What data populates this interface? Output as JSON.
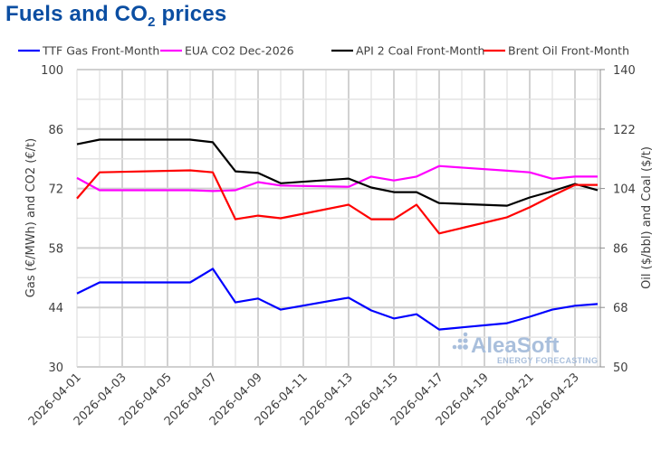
{
  "chart_data": {
    "type": "line",
    "title_main": "Fuels and CO",
    "title_sub": "2",
    "title_tail": " prices",
    "ylabel_left": "Gas (€/MWh) and CO2 (€/t)",
    "ylabel_right": "Oil ($/bbl) and Coal ($/t)",
    "ylim_left": [
      30,
      100
    ],
    "ylim_right": [
      50,
      140
    ],
    "yticks_left": [
      "100",
      "86",
      "72",
      "58",
      "44",
      "30"
    ],
    "yticks_right": [
      "140",
      "122",
      "104",
      "86",
      "68",
      "50"
    ],
    "ytick_values_left": [
      100,
      86,
      72,
      58,
      44,
      30
    ],
    "ytick_values_right": [
      140,
      122,
      104,
      86,
      68,
      50
    ],
    "x_start": "2026-04-01",
    "x_end": "2026-04-24",
    "xticks": [
      "2026-04-01",
      "2026-04-03",
      "2026-04-05",
      "2026-04-07",
      "2026-04-09",
      "2026-04-11",
      "2026-04-13",
      "2026-04-15",
      "2026-04-17",
      "2026-04-19",
      "2026-04-21",
      "2026-04-23"
    ],
    "grid": true,
    "legend_position": "top",
    "x": [
      "2026-04-01",
      "2026-04-02",
      "2026-04-06",
      "2026-04-07",
      "2026-04-08",
      "2026-04-09",
      "2026-04-10",
      "2026-04-13",
      "2026-04-14",
      "2026-04-15",
      "2026-04-16",
      "2026-04-17",
      "2026-04-20",
      "2026-04-21",
      "2026-04-22",
      "2026-04-23",
      "2026-04-24"
    ],
    "series": [
      {
        "name": "TTF Gas Front-Month",
        "axis": "left",
        "color": "#0000ff",
        "values": [
          47.3,
          49.9,
          49.9,
          53.1,
          45.2,
          46.1,
          43.5,
          46.3,
          43.3,
          41.4,
          42.4,
          38.8,
          40.3,
          41.8,
          43.5,
          44.4,
          44.8
        ]
      },
      {
        "name": "EUA CO2 Dec-2026",
        "axis": "left",
        "color": "#ff00ff",
        "values": [
          74.5,
          71.6,
          71.6,
          71.4,
          71.6,
          73.5,
          72.7,
          72.4,
          74.8,
          73.9,
          74.8,
          77.3,
          76.2,
          75.8,
          74.3,
          74.8,
          74.8
        ]
      },
      {
        "name": "API 2 Coal Front-Month",
        "axis": "right",
        "color": "#000000",
        "values": [
          117.4,
          118.8,
          118.8,
          118.0,
          109.2,
          108.7,
          105.6,
          107.0,
          104.3,
          102.9,
          102.9,
          99.6,
          98.8,
          101.3,
          103.2,
          105.4,
          103.5
        ]
      },
      {
        "name": "Brent Oil Front-Month",
        "axis": "right",
        "color": "#ff0000",
        "values": [
          101.0,
          108.9,
          109.5,
          108.9,
          94.7,
          95.8,
          95.0,
          99.1,
          94.7,
          94.7,
          99.1,
          90.4,
          95.3,
          98.3,
          101.8,
          105.1,
          105.1
        ]
      }
    ],
    "watermark_main": "AleaSoft",
    "watermark_sub": "ENERGY FORECASTING"
  }
}
